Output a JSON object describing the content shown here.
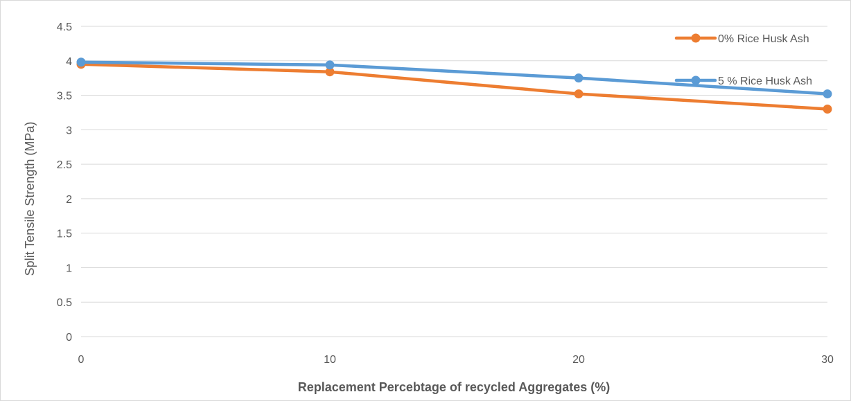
{
  "chart_data": {
    "type": "line",
    "xlabel": "Replacement Percebtage of recycled Aggregates (%)",
    "ylabel": "Split Tensile Strength (MPa)",
    "xlim": [
      0,
      30
    ],
    "ylim": [
      0,
      4.5
    ],
    "x_ticks": [
      "0",
      "10",
      "20",
      "30"
    ],
    "y_ticks": [
      "0",
      "0.5",
      "1",
      "1.5",
      "2",
      "2.5",
      "3",
      "3.5",
      "4",
      "4.5"
    ],
    "grid": "horizontal",
    "legend_position": "top-right",
    "x": [
      0,
      10,
      20,
      30
    ],
    "series": [
      {
        "name": "0% Rice Husk Ash",
        "color": "#ED7D31",
        "values": [
          3.95,
          3.84,
          3.52,
          3.3
        ]
      },
      {
        "name": "5 % Rice Husk Ash",
        "color": "#5B9BD5",
        "values": [
          3.98,
          3.94,
          3.75,
          3.52
        ]
      }
    ]
  }
}
